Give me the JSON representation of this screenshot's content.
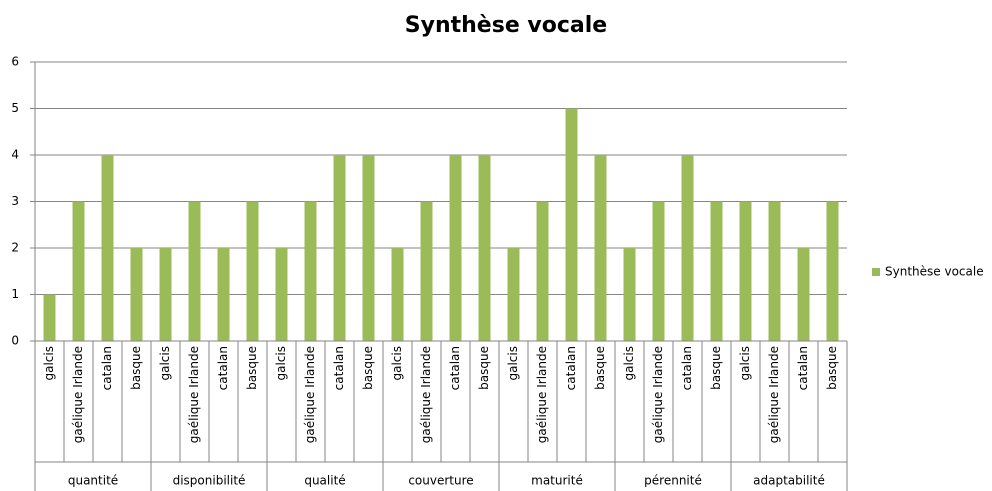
{
  "chart_data": {
    "type": "bar",
    "title": "Synthèse vocale",
    "categories": [
      "galcis",
      "gaélique Irlande",
      "catalan",
      "basque",
      "galcis",
      "gaélique Irlande",
      "catalan",
      "basque",
      "galcis",
      "gaélique Irlande",
      "catalan",
      "basque",
      "galcis",
      "gaélique Irlande",
      "catalan",
      "basque",
      "galcis",
      "gaélique Irlande",
      "catalan",
      "basque",
      "galcis",
      "gaélique Irlande",
      "catalan",
      "basque",
      "galcis",
      "gaélique Irlande",
      "catalan",
      "basque"
    ],
    "groups": [
      "quantité",
      "disponibilité",
      "qualité",
      "couverture",
      "maturité",
      "pérennité",
      "adaptabilité"
    ],
    "series": [
      {
        "name": "Synthèse vocale",
        "color": "#9bbb59",
        "values": [
          1,
          3,
          4,
          2,
          2,
          3,
          2,
          3,
          2,
          3,
          4,
          4,
          2,
          3,
          4,
          4,
          2,
          3,
          5,
          4,
          2,
          3,
          4,
          3,
          3,
          3,
          2,
          3
        ]
      }
    ],
    "ylim": [
      0,
      6
    ],
    "yticks": [
      0,
      1,
      2,
      3,
      4,
      5,
      6
    ],
    "grid": true,
    "legend": "right"
  }
}
